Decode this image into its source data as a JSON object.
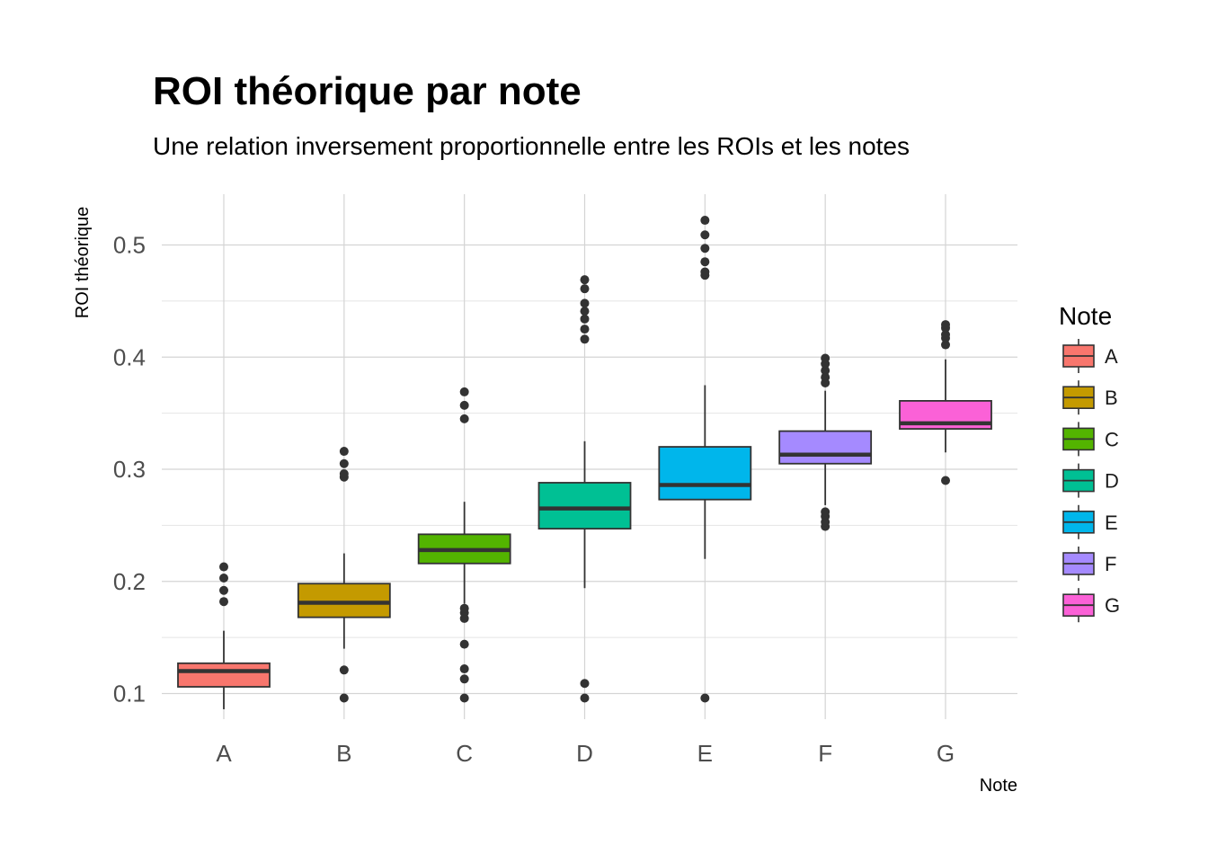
{
  "chart_data": {
    "type": "box",
    "title": "ROI théorique par note",
    "subtitle": "Une relation inversement proportionnelle entre les ROIs et les notes",
    "xlabel": "Note",
    "ylabel": "ROI théorique",
    "ylim": [
      0.06,
      0.545
    ],
    "y_ticks": [
      0.1,
      0.2,
      0.3,
      0.4,
      0.5
    ],
    "y_tick_labels": [
      "0.1",
      "0.2",
      "0.3",
      "0.4",
      "0.5"
    ],
    "grid": true,
    "legend": {
      "title": "Note",
      "position": "right"
    },
    "categories": [
      "A",
      "B",
      "C",
      "D",
      "E",
      "F",
      "G"
    ],
    "series": [
      {
        "category": "A",
        "color": "#F8766D",
        "whisker_low": 0.086,
        "q1": 0.106,
        "median": 0.12,
        "q3": 0.127,
        "whisker_high": 0.156,
        "outliers": [
          0.182,
          0.192,
          0.203,
          0.213
        ]
      },
      {
        "category": "B",
        "color": "#C49A00",
        "whisker_low": 0.14,
        "q1": 0.168,
        "median": 0.181,
        "q3": 0.198,
        "whisker_high": 0.225,
        "outliers": [
          0.096,
          0.121,
          0.293,
          0.296,
          0.305,
          0.316
        ]
      },
      {
        "category": "C",
        "color": "#53B400",
        "whisker_low": 0.18,
        "q1": 0.216,
        "median": 0.228,
        "q3": 0.242,
        "whisker_high": 0.271,
        "outliers": [
          0.096,
          0.113,
          0.122,
          0.144,
          0.167,
          0.172,
          0.176,
          0.345,
          0.357,
          0.369
        ]
      },
      {
        "category": "D",
        "color": "#00C094",
        "whisker_low": 0.194,
        "q1": 0.247,
        "median": 0.265,
        "q3": 0.288,
        "whisker_high": 0.325,
        "outliers": [
          0.096,
          0.109,
          0.416,
          0.425,
          0.434,
          0.441,
          0.448,
          0.461,
          0.469
        ]
      },
      {
        "category": "E",
        "color": "#00B6EB",
        "whisker_low": 0.22,
        "q1": 0.273,
        "median": 0.286,
        "q3": 0.32,
        "whisker_high": 0.375,
        "outliers": [
          0.096,
          0.473,
          0.476,
          0.485,
          0.497,
          0.509,
          0.522
        ]
      },
      {
        "category": "F",
        "color": "#A58AFF",
        "whisker_low": 0.268,
        "q1": 0.305,
        "median": 0.313,
        "q3": 0.334,
        "whisker_high": 0.37,
        "outliers": [
          0.249,
          0.253,
          0.258,
          0.262,
          0.377,
          0.382,
          0.388,
          0.394,
          0.399
        ]
      },
      {
        "category": "G",
        "color": "#FB61D7",
        "whisker_low": 0.315,
        "q1": 0.336,
        "median": 0.341,
        "q3": 0.361,
        "whisker_high": 0.398,
        "outliers": [
          0.29,
          0.411,
          0.417,
          0.42,
          0.426,
          0.429
        ]
      }
    ]
  }
}
